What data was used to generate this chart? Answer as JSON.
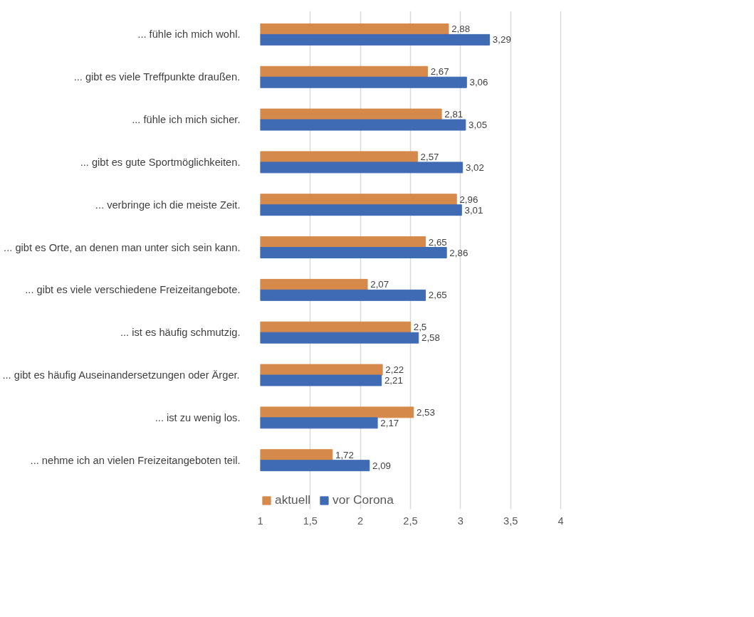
{
  "chart_data": {
    "type": "bar",
    "orientation": "horizontal",
    "categories": [
      "... fühle ich mich wohl.",
      "... gibt es viele Treffpunkte draußen.",
      "... fühle ich mich sicher.",
      "... gibt es gute Sportmöglichkeiten.",
      "... verbringe ich die meiste Zeit.",
      "... gibt es Orte, an denen man unter sich sein kann.",
      "... gibt es viele verschiedene Freizeitangebote.",
      "... ist es häufig schmutzig.",
      "... gibt es häufig Auseinandersetzungen oder Ärger.",
      "... ist zu wenig los.",
      "... nehme ich an vielen Freizeitangeboten teil."
    ],
    "series": [
      {
        "name": "aktuell",
        "color": "#d5894a",
        "values": [
          2.88,
          2.67,
          2.81,
          2.57,
          2.96,
          2.65,
          2.07,
          2.5,
          2.22,
          2.53,
          1.72
        ],
        "value_labels": [
          "2,88",
          "2,67",
          "2,81",
          "2,57",
          "2,96",
          "2,65",
          "2,07",
          "2,5",
          "2,22",
          "2,53",
          "1,72"
        ]
      },
      {
        "name": "vor Corona",
        "color": "#3f6bb4",
        "values": [
          3.29,
          3.06,
          3.05,
          3.02,
          3.01,
          2.86,
          2.65,
          2.58,
          2.21,
          2.17,
          2.09
        ],
        "value_labels": [
          "3,29",
          "3,06",
          "3,05",
          "3,02",
          "3,01",
          "2,86",
          "2,65",
          "2,58",
          "2,21",
          "2,17",
          "2,09"
        ]
      }
    ],
    "xlim": [
      1,
      4
    ],
    "xticks": [
      1,
      {
        "value": 1.5,
        "label": "1,5"
      },
      2,
      {
        "value": 2.5,
        "label": "2,5"
      },
      3,
      {
        "value": 3.5,
        "label": "3,5"
      },
      4
    ],
    "grid": "x",
    "legend": "bottom left"
  }
}
